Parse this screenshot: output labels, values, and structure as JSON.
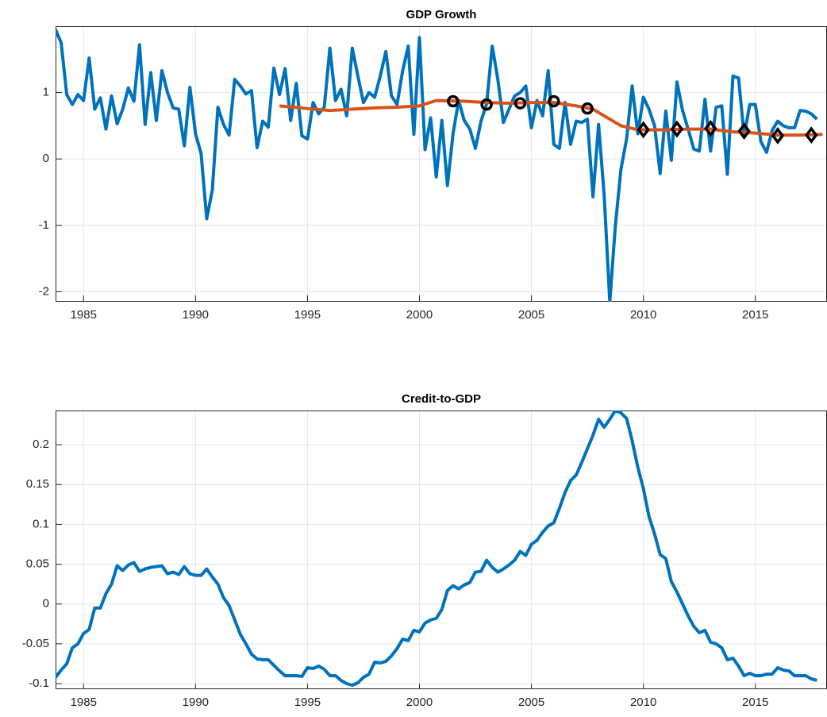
{
  "chart_data": [
    {
      "type": "line",
      "title": "GDP Growth",
      "xlim": [
        1983.75,
        2018.2
      ],
      "ylim": [
        -2.15,
        2
      ],
      "xticks": [
        1985,
        1990,
        1995,
        2000,
        2005,
        2010,
        2015
      ],
      "yticks": [
        -2,
        -1,
        0,
        1
      ],
      "grid": true,
      "x": [
        1983.75,
        1984,
        1984.25,
        1984.5,
        1984.75,
        1985,
        1985.25,
        1985.5,
        1985.75,
        1986,
        1986.25,
        1986.5,
        1986.75,
        1987,
        1987.25,
        1987.5,
        1987.75,
        1988,
        1988.25,
        1988.5,
        1988.75,
        1989,
        1989.25,
        1989.5,
        1989.75,
        1990,
        1990.25,
        1990.5,
        1990.75,
        1991,
        1991.25,
        1991.5,
        1991.75,
        1992,
        1992.25,
        1992.5,
        1992.75,
        1993,
        1993.25,
        1993.5,
        1993.75,
        1994,
        1994.25,
        1994.5,
        1994.75,
        1995,
        1995.25,
        1995.5,
        1995.75,
        1996,
        1996.25,
        1996.5,
        1996.75,
        1997,
        1997.25,
        1997.5,
        1997.75,
        1998,
        1998.25,
        1998.5,
        1998.75,
        1999,
        1999.25,
        1999.5,
        1999.75,
        2000,
        2000.25,
        2000.5,
        2000.75,
        2001,
        2001.25,
        2001.5,
        2001.75,
        2002,
        2002.25,
        2002.5,
        2002.75,
        2003,
        2003.25,
        2003.5,
        2003.75,
        2004,
        2004.25,
        2004.5,
        2004.75,
        2005,
        2005.25,
        2005.5,
        2005.75,
        2006,
        2006.25,
        2006.5,
        2006.75,
        2007,
        2007.25,
        2007.5,
        2007.75,
        2008,
        2008.25,
        2008.5,
        2008.75,
        2009,
        2009.25,
        2009.5,
        2009.75,
        2010,
        2010.25,
        2010.5,
        2010.75,
        2011,
        2011.25,
        2011.5,
        2011.75,
        2012,
        2012.25,
        2012.5,
        2012.75,
        2013,
        2013.25,
        2013.5,
        2013.75,
        2014,
        2014.25,
        2014.5,
        2014.75,
        2015,
        2015.25,
        2015.5,
        2015.75,
        2016,
        2016.25,
        2016.5,
        2016.75,
        2017,
        2017.25,
        2017.5,
        2017.75
      ],
      "series": [
        {
          "color": "#0072bd",
          "values": [
            1.95,
            1.75,
            0.97,
            0.82,
            0.97,
            0.88,
            1.52,
            0.75,
            0.92,
            0.45,
            0.95,
            0.53,
            0.75,
            1.07,
            0.87,
            1.72,
            0.52,
            1.3,
            0.58,
            1.33,
            1.0,
            0.77,
            0.75,
            0.2,
            1.08,
            0.38,
            0.08,
            -0.9,
            -0.47,
            0.78,
            0.52,
            0.36,
            1.2,
            1.1,
            0.98,
            1.03,
            0.17,
            0.57,
            0.48,
            1.37,
            0.97,
            1.36,
            0.58,
            1.14,
            0.35,
            0.3,
            0.85,
            0.68,
            0.78,
            1.67,
            0.88,
            1.05,
            0.65,
            1.67,
            1.25,
            0.85,
            1.0,
            0.93,
            1.25,
            1.62,
            0.95,
            0.82,
            1.33,
            1.7,
            0.37,
            1.83,
            0.14,
            0.62,
            -0.27,
            0.58,
            -0.4,
            0.38,
            0.88,
            0.58,
            0.45,
            0.16,
            0.57,
            0.83,
            1.7,
            1.2,
            0.55,
            0.75,
            0.95,
            1.0,
            1.1,
            0.47,
            0.88,
            0.65,
            1.33,
            0.22,
            0.16,
            0.85,
            0.22,
            0.57,
            0.55,
            0.6,
            -0.57,
            0.52,
            -0.55,
            -2.15,
            -1.0,
            -0.15,
            0.3,
            1.1,
            0.38,
            0.93,
            0.75,
            0.5,
            -0.22,
            0.72,
            -0.02,
            1.16,
            0.73,
            0.45,
            0.15,
            0.12,
            0.9,
            0.12,
            0.78,
            0.8,
            -0.23,
            1.25,
            1.22,
            0.35,
            0.82,
            0.82,
            0.26,
            0.1,
            0.43,
            0.57,
            0.5,
            0.47,
            0.47,
            0.73,
            0.72,
            0.68,
            0.6
          ]
        },
        {
          "color": "#d95319",
          "x": [
            1993.75,
            1995,
            1996,
            1997,
            1998,
            1999,
            2000,
            2000.75,
            2002,
            2003,
            2004,
            2005,
            2006,
            2007,
            2007.75,
            2008.5,
            2009,
            2009.75,
            2011,
            2012,
            2013,
            2014,
            2015,
            2016,
            2017,
            2018
          ],
          "values": [
            0.8,
            0.76,
            0.73,
            0.75,
            0.77,
            0.78,
            0.8,
            0.88,
            0.87,
            0.85,
            0.84,
            0.85,
            0.85,
            0.8,
            0.75,
            0.6,
            0.5,
            0.44,
            0.44,
            0.45,
            0.45,
            0.41,
            0.39,
            0.36,
            0.36,
            0.37
          ]
        },
        {
          "color": "#000000",
          "marker": "o",
          "linestyle": "none",
          "x": [
            2001.5,
            2003,
            2004.5,
            2006,
            2007.5
          ],
          "values": [
            0.87,
            0.82,
            0.84,
            0.87,
            0.76
          ]
        },
        {
          "color": "#000000",
          "marker": "d",
          "linestyle": "none",
          "x": [
            2010,
            2011.5,
            2013,
            2014.5,
            2016,
            2017.5
          ],
          "values": [
            0.44,
            0.45,
            0.46,
            0.42,
            0.35,
            0.36
          ]
        }
      ]
    },
    {
      "type": "line",
      "title": "Credit-to-GDP",
      "xlim": [
        1983.75,
        2018.2
      ],
      "ylim": [
        -0.107,
        0.243
      ],
      "xticks": [
        1985,
        1990,
        1995,
        2000,
        2005,
        2010,
        2015
      ],
      "yticks": [
        -0.1,
        -0.05,
        0,
        0.05,
        0.1,
        0.15,
        0.2
      ],
      "grid": true,
      "x": [
        1983.75,
        1984,
        1984.25,
        1984.5,
        1984.75,
        1985,
        1985.25,
        1985.5,
        1985.75,
        1986,
        1986.25,
        1986.5,
        1986.75,
        1987,
        1987.25,
        1987.5,
        1987.75,
        1988,
        1988.25,
        1988.5,
        1988.75,
        1989,
        1989.25,
        1989.5,
        1989.75,
        1990,
        1990.25,
        1990.5,
        1990.75,
        1991,
        1991.25,
        1991.5,
        1991.75,
        1992,
        1992.25,
        1992.5,
        1992.75,
        1993,
        1993.25,
        1993.5,
        1993.75,
        1994,
        1994.25,
        1994.5,
        1994.75,
        1995,
        1995.25,
        1995.5,
        1995.75,
        1996,
        1996.25,
        1996.5,
        1996.75,
        1997,
        1997.25,
        1997.5,
        1997.75,
        1998,
        1998.25,
        1998.5,
        1998.75,
        1999,
        1999.25,
        1999.5,
        1999.75,
        2000,
        2000.25,
        2000.5,
        2000.75,
        2001,
        2001.25,
        2001.5,
        2001.75,
        2002,
        2002.25,
        2002.5,
        2002.75,
        2003,
        2003.25,
        2003.5,
        2003.75,
        2004,
        2004.25,
        2004.5,
        2004.75,
        2005,
        2005.25,
        2005.5,
        2005.75,
        2006,
        2006.25,
        2006.5,
        2006.75,
        2007,
        2007.25,
        2007.5,
        2007.75,
        2008,
        2008.25,
        2008.5,
        2008.75,
        2009,
        2009.25,
        2009.5,
        2009.75,
        2010,
        2010.25,
        2010.5,
        2010.75,
        2011,
        2011.25,
        2011.5,
        2011.75,
        2012,
        2012.25,
        2012.5,
        2012.75,
        2013,
        2013.25,
        2013.5,
        2013.75,
        2014,
        2014.25,
        2014.5,
        2014.75,
        2015,
        2015.25,
        2015.5,
        2015.75,
        2016,
        2016.25,
        2016.5,
        2016.75,
        2017,
        2017.25,
        2017.5,
        2017.75
      ],
      "series": [
        {
          "color": "#0072bd",
          "values": [
            -0.092,
            -0.083,
            -0.075,
            -0.055,
            -0.05,
            -0.037,
            -0.032,
            -0.005,
            -0.005,
            0.013,
            0.025,
            0.048,
            0.042,
            0.049,
            0.052,
            0.041,
            0.044,
            0.046,
            0.047,
            0.048,
            0.038,
            0.04,
            0.037,
            0.047,
            0.038,
            0.036,
            0.036,
            0.044,
            0.034,
            0.025,
            0.008,
            -0.002,
            -0.02,
            -0.038,
            -0.05,
            -0.063,
            -0.069,
            -0.07,
            -0.07,
            -0.077,
            -0.084,
            -0.09,
            -0.09,
            -0.09,
            -0.091,
            -0.08,
            -0.081,
            -0.078,
            -0.082,
            -0.09,
            -0.09,
            -0.096,
            -0.1,
            -0.102,
            -0.099,
            -0.092,
            -0.088,
            -0.073,
            -0.074,
            -0.072,
            -0.065,
            -0.056,
            -0.044,
            -0.046,
            -0.033,
            -0.035,
            -0.024,
            -0.02,
            -0.018,
            -0.007,
            0.017,
            0.023,
            0.019,
            0.024,
            0.027,
            0.04,
            0.041,
            0.055,
            0.046,
            0.04,
            0.044,
            0.049,
            0.055,
            0.066,
            0.061,
            0.075,
            0.08,
            0.09,
            0.098,
            0.102,
            0.12,
            0.14,
            0.155,
            0.162,
            0.178,
            0.195,
            0.212,
            0.232,
            0.222,
            0.232,
            0.243,
            0.24,
            0.233,
            0.205,
            0.172,
            0.145,
            0.11,
            0.088,
            0.062,
            0.057,
            0.028,
            0.015,
            0.0,
            -0.015,
            -0.028,
            -0.036,
            -0.033,
            -0.048,
            -0.05,
            -0.055,
            -0.07,
            -0.068,
            -0.078,
            -0.09,
            -0.087,
            -0.09,
            -0.09,
            -0.088,
            -0.088,
            -0.08,
            -0.083,
            -0.084,
            -0.09,
            -0.09,
            -0.09,
            -0.094,
            -0.096
          ]
        }
      ]
    }
  ]
}
